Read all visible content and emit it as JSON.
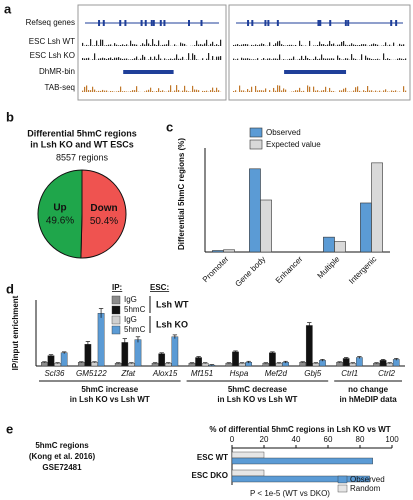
{
  "chart_data": [
    {
      "type": "tracks",
      "panel_label": "a",
      "tracks": [
        "Refseq genes",
        "ESC Lsh WT",
        "ESC Lsh KO",
        "DhMR-bin",
        "TAB-seq"
      ]
    },
    {
      "type": "pie",
      "panel_label": "b",
      "title": [
        "Differential 5hmC regions",
        "in Lsh KO and WT ESCs"
      ],
      "subtitle": "8557 regions",
      "categories": [
        "Up",
        "Down"
      ],
      "values": [
        49.6,
        50.4
      ],
      "value_labels": [
        "49.6%",
        "50.4%"
      ],
      "colors": [
        "#1fa64b",
        "#ef5350"
      ]
    },
    {
      "type": "bar",
      "panel_label": "c",
      "ylabel": "Differential 5hmC regions (%)",
      "categories": [
        "Promoter",
        "Gene body",
        "Enhancer",
        "Multiple",
        "Intergenic"
      ],
      "series": [
        {
          "name": "Observed",
          "color": "#5b9bd5",
          "values": [
            1,
            56,
            0,
            10,
            33
          ]
        },
        {
          "name": "Expected value",
          "color": "#d9d9d9",
          "values": [
            1.5,
            35,
            0,
            7,
            60
          ]
        }
      ],
      "ylim": [
        0,
        70
      ]
    },
    {
      "type": "errorbar",
      "panel_label": "d",
      "ylabel": "IP/input enrichment",
      "legend_headers": [
        "IP:",
        "ESC:"
      ],
      "legend_groups": [
        "Lsh WT",
        "Lsh KO"
      ],
      "categories": [
        "Scl36",
        "GM5122",
        "Zfat",
        "Alox15",
        "Mf151",
        "Hspa",
        "Mef2d",
        "Gbj5",
        "Ctrl1",
        "Ctrl2"
      ],
      "series": [
        {
          "name": "IgG",
          "color": "#8c8c8c",
          "values": [
            0.4,
            0.4,
            0.3,
            0.3,
            0.3,
            0.3,
            0.3,
            0.4,
            0.4,
            0.3
          ],
          "errors": [
            0.05,
            0.05,
            0.05,
            0.05,
            0.05,
            0.05,
            0.05,
            0.05,
            0.05,
            0.05
          ]
        },
        {
          "name": "5hmC",
          "color": "#111111",
          "values": [
            1.1,
            2.3,
            2.5,
            1.3,
            0.9,
            1.5,
            1.4,
            4.3,
            0.8,
            0.6
          ],
          "errors": [
            0.1,
            0.3,
            0.4,
            0.1,
            0.1,
            0.1,
            0.1,
            0.3,
            0.1,
            0.1
          ]
        },
        {
          "name": "IgG",
          "color": "#d0d0d0",
          "values": [
            0.3,
            0.4,
            0.3,
            0.3,
            0.3,
            0.3,
            0.3,
            0.3,
            0.3,
            0.3
          ],
          "errors": [
            0.05,
            0.05,
            0.05,
            0.05,
            0.05,
            0.05,
            0.05,
            0.05,
            0.05,
            0.05
          ]
        },
        {
          "name": "5hmC",
          "color": "#5b9bd5",
          "values": [
            1.4,
            5.6,
            2.8,
            3.1,
            0.1,
            0.4,
            0.4,
            0.6,
            0.9,
            0.7
          ],
          "errors": [
            0.1,
            0.5,
            0.3,
            0.2,
            0.05,
            0.1,
            0.1,
            0.1,
            0.1,
            0.1
          ]
        }
      ],
      "group_labels": [
        [
          "5hmC increase",
          "in Lsh KO vs Lsh WT"
        ],
        [
          "5hmC decrease",
          "in Lsh KO vs Lsh WT"
        ],
        [
          "no change",
          "in hMeDIP data"
        ]
      ],
      "ylim": [
        0,
        7
      ]
    },
    {
      "type": "hbar",
      "panel_label": "e",
      "title": "% of differential 5hmC regions in Lsh KO vs WT",
      "side_label": [
        "5hmC regions",
        "(Kong et al. 2016)",
        "GSE72481"
      ],
      "categories": [
        "ESC WT",
        "ESC DKO"
      ],
      "series": [
        {
          "name": "Observed",
          "color": "#5b9bd5",
          "values": [
            88,
            86
          ]
        },
        {
          "name": "Random",
          "color": "#e6e6e6",
          "values": [
            20,
            20
          ]
        }
      ],
      "xlim": [
        0,
        100
      ],
      "xticks": [
        0,
        20,
        40,
        60,
        80,
        100
      ],
      "note": "P < 1e-5 (WT vs DKO)"
    }
  ]
}
